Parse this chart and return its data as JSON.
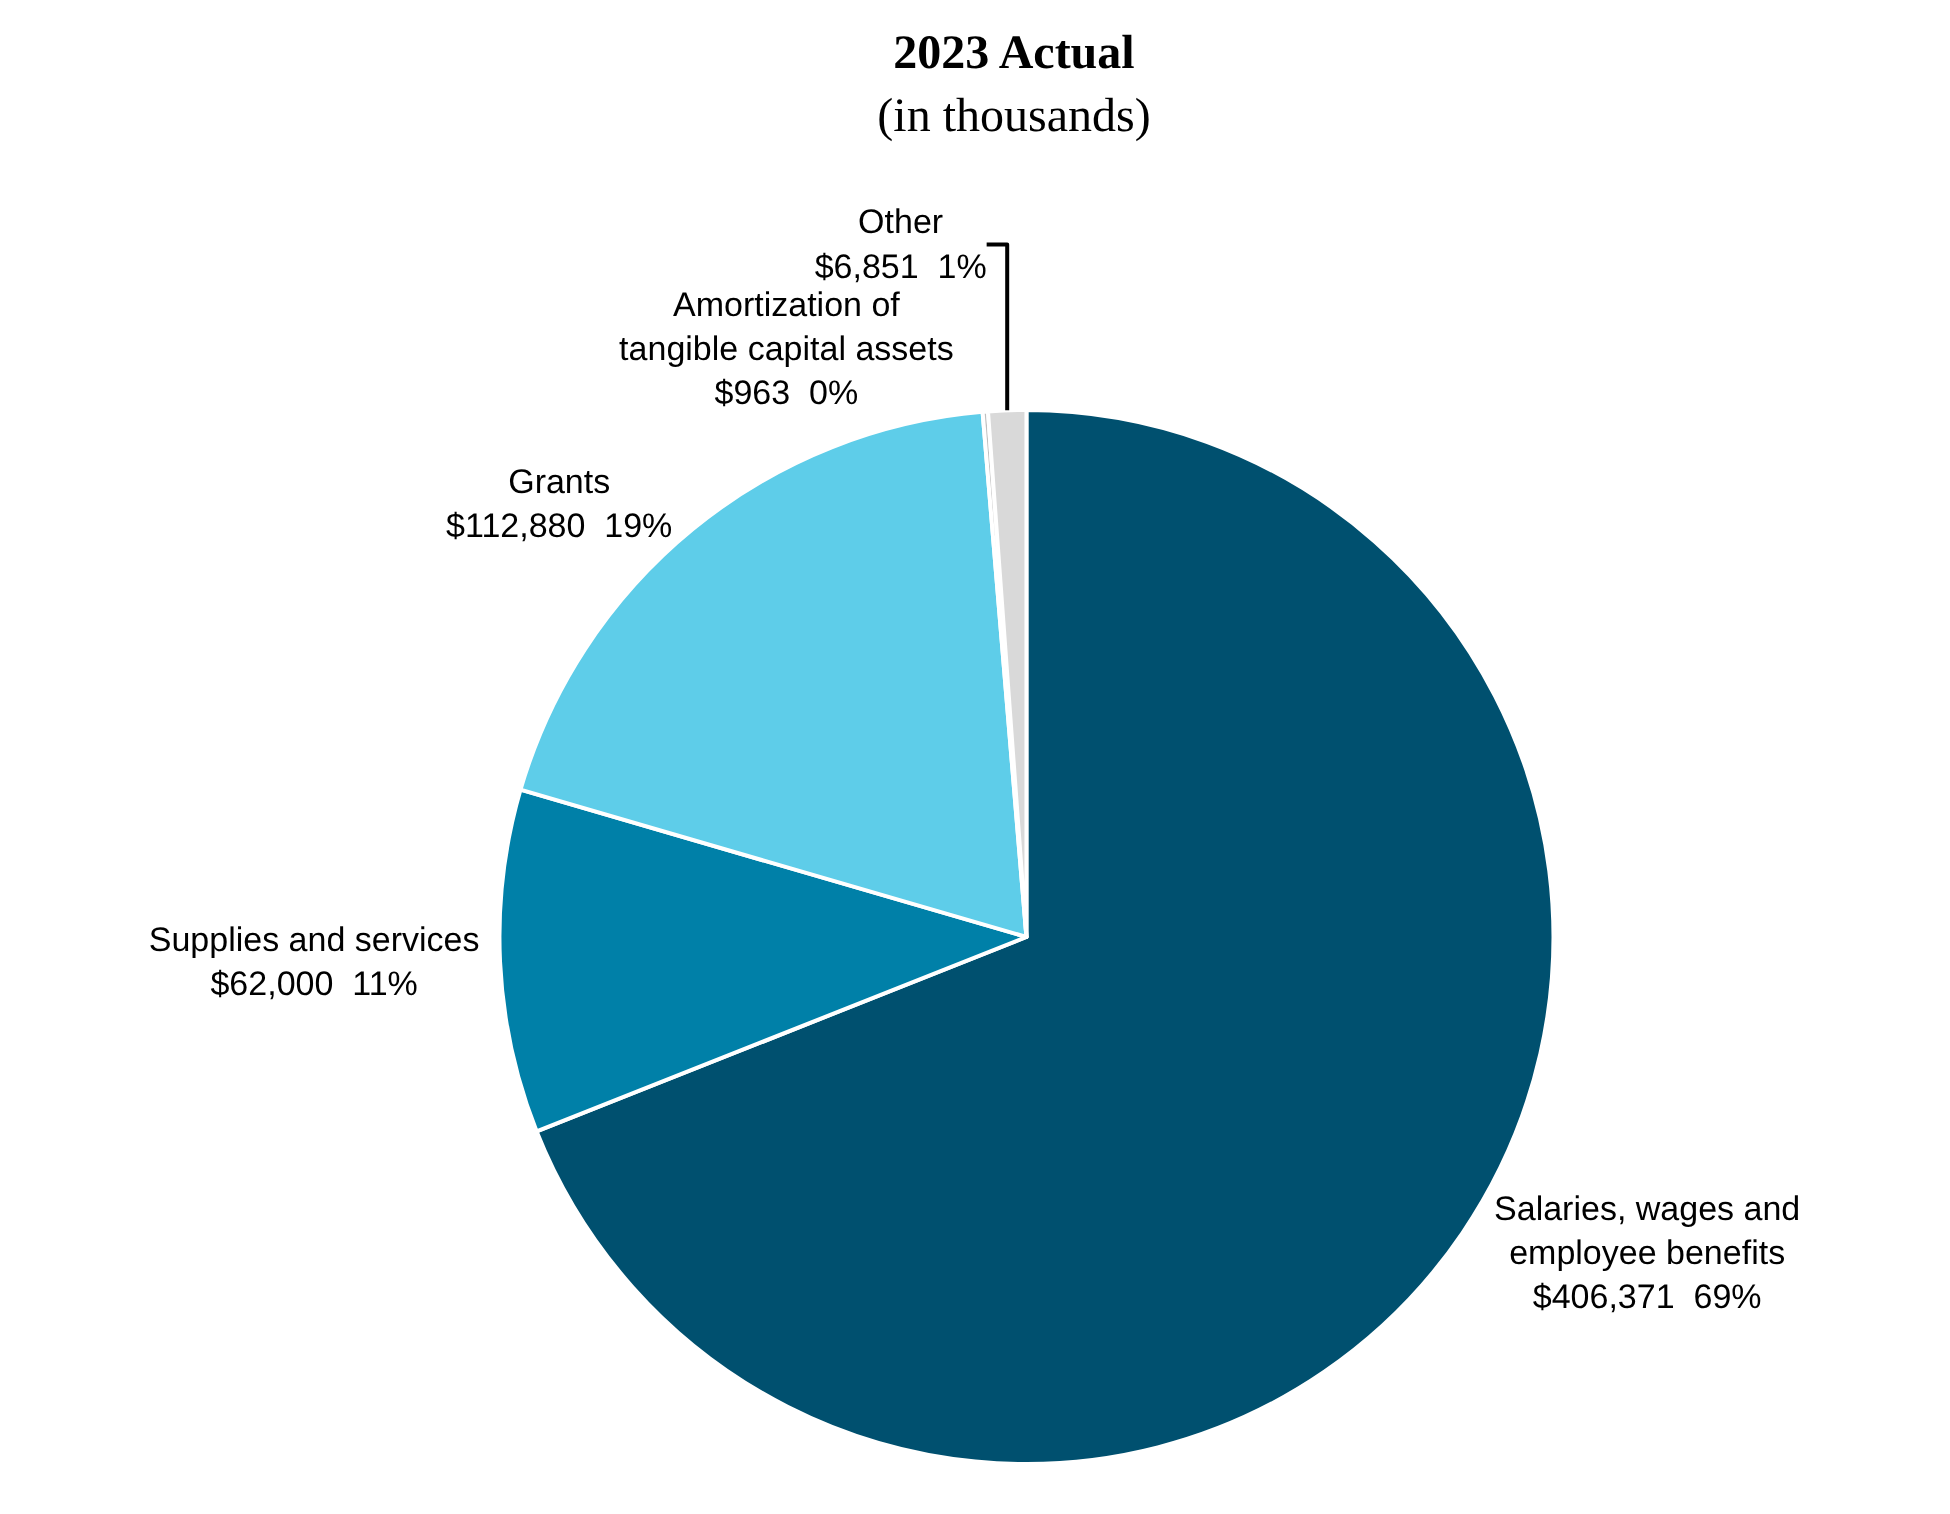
{
  "chart_data": {
    "type": "pie",
    "title": "2023 Actual",
    "subtitle": "(in thousands)",
    "categories": [
      "Salaries, wages and employee benefits",
      "Supplies and services",
      "Grants",
      "Amortization of tangible capital assets",
      "Other"
    ],
    "values": [
      406371,
      62000,
      112880,
      963,
      6851
    ],
    "value_labels": [
      "$406,371  69%",
      "$62,000  11%",
      "$112,880  19%",
      "$963  0%",
      "$6,851  1%"
    ],
    "colors": [
      "#00506f",
      "#0080a8",
      "#5ecde9",
      "#bfbfbf",
      "#d9d9d9"
    ],
    "legend": false
  }
}
